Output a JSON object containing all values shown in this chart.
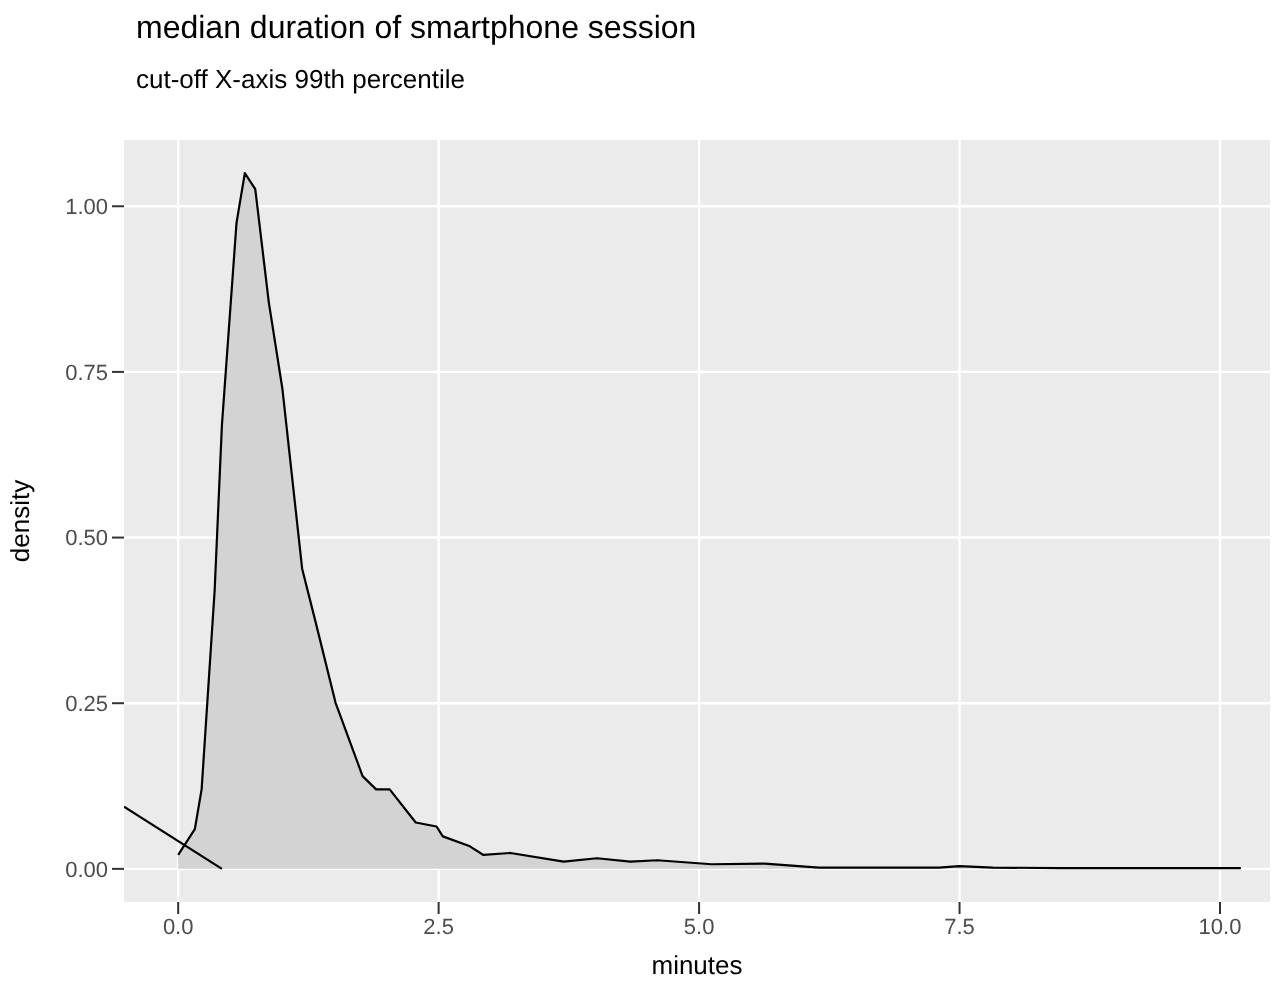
{
  "chart_data": {
    "type": "area",
    "title": "median duration of smartphone session",
    "subtitle": "cut-off X-axis 99th percentile",
    "xlabel": "minutes",
    "ylabel": "density",
    "xlim": [
      -0.52,
      10.48
    ],
    "ylim": [
      -0.05,
      1.1
    ],
    "xticks": [
      {
        "value": 0,
        "label": "0.0"
      },
      {
        "value": 2.5,
        "label": "2.5"
      },
      {
        "value": 5,
        "label": "5.0"
      },
      {
        "value": 7.5,
        "label": "7.5"
      },
      {
        "value": 10,
        "label": "10.0"
      }
    ],
    "yticks": [
      {
        "value": 0,
        "label": "0.00"
      },
      {
        "value": 0.25,
        "label": "0.25"
      },
      {
        "value": 0.5,
        "label": "0.50"
      },
      {
        "value": 0.75,
        "label": "0.75"
      },
      {
        "value": 1,
        "label": "1.00"
      }
    ],
    "grid": true,
    "legend": false,
    "series": [
      {
        "color": "#d3d3d3",
        "x": [
          0,
          0.16,
          0.225,
          0.35,
          0.42,
          0.56,
          0.64,
          0.74,
          0.87,
          1.0,
          1.19,
          1.32,
          1.51,
          1.77,
          1.9,
          2.03,
          2.28,
          2.48,
          2.54,
          2.8,
          2.93,
          3.19,
          3.7,
          4.02,
          4.34,
          4.6,
          5.12,
          5.63,
          6.15,
          7.3,
          7.5,
          7.82,
          8.46,
          10.2
        ],
        "values": [
          0.021,
          0.06,
          0.12,
          0.42,
          0.67,
          0.975,
          1.05,
          1.026,
          0.855,
          0.725,
          0.453,
          0.372,
          0.251,
          0.14,
          0.12,
          0.12,
          0.07,
          0.064,
          0.049,
          0.034,
          0.021,
          0.024,
          0.011,
          0.016,
          0.011,
          0.013,
          0.007,
          0.008,
          0.002,
          0.002,
          0.004,
          0.002,
          0.001,
          0.001
        ]
      },
      {
        "type": "line",
        "color": "#000000",
        "x": [
          -0.52,
          0.42
        ],
        "values": [
          0.094,
          0
        ]
      }
    ]
  }
}
